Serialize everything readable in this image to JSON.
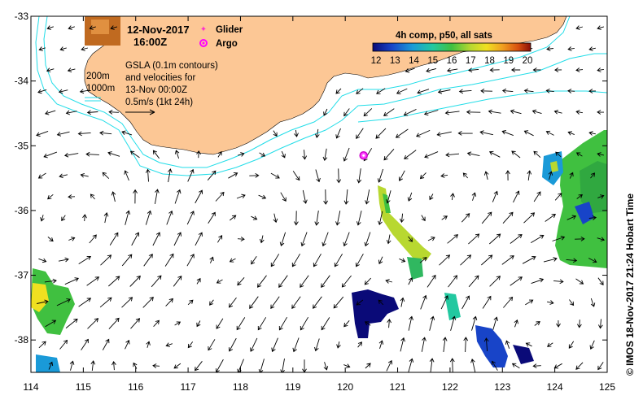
{
  "map": {
    "date": "12-Nov-2017",
    "time": "16:00Z",
    "legend": {
      "glider_label": "Glider",
      "argo_label": "Argo",
      "glider_color": "#ff33cc",
      "argo_color": "#ff00ff"
    },
    "info_lines": [
      "GSLA (0.1m contours)",
      "and velocities for",
      "13-Nov 00:00Z",
      "0.5m/s (1kt 24h)"
    ],
    "depth_labels": [
      "200m",
      "1000m"
    ],
    "colorbar": {
      "title": "4h comp, p50, all sats",
      "ticks": [
        "12",
        "13",
        "14",
        "15",
        "16",
        "17",
        "18",
        "19",
        "20"
      ],
      "min": 12,
      "max": 20
    },
    "x_axis": {
      "ticks": [
        "114",
        "115",
        "116",
        "117",
        "118",
        "119",
        "120",
        "121",
        "122",
        "123",
        "124",
        "125"
      ],
      "min": 114,
      "max": 125
    },
    "y_axis": {
      "ticks": [
        "-33",
        "-34",
        "-35",
        "-36",
        "-37",
        "-38"
      ],
      "min": -38.5,
      "max": -33
    },
    "credit": "© IMOS 18-Nov-2017 21:24 Hobart Time",
    "argo_position": {
      "lon": 120.35,
      "lat": -35.15
    },
    "colors": {
      "land": "#fcc795",
      "isobath": "#22dde8",
      "arrow": "#000000"
    }
  }
}
